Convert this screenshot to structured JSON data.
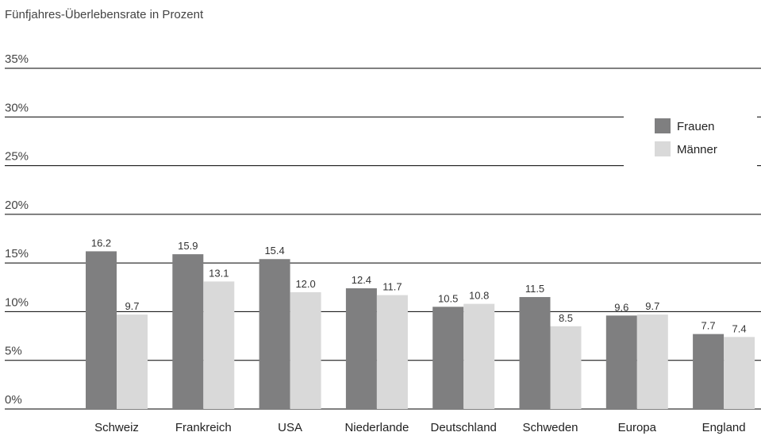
{
  "chart_data": {
    "type": "bar",
    "title": "Fünfjahres-Überlebensrate in Prozent",
    "categories": [
      "Schweiz",
      "Frankreich",
      "USA",
      "Niederlande",
      "Deutschland",
      "Schweden",
      "Europa",
      "England"
    ],
    "series": [
      {
        "name": "Frauen",
        "values": [
          16.2,
          15.9,
          15.4,
          12.4,
          10.5,
          11.5,
          9.6,
          7.7
        ],
        "value_labels": [
          "16.2",
          "15.9",
          "15.4",
          "12.4",
          "10.5",
          "11.5",
          "9.6",
          "7.7"
        ],
        "color": "#7f7f80"
      },
      {
        "name": "Männer",
        "values": [
          9.7,
          13.1,
          12.0,
          11.7,
          10.8,
          8.5,
          9.7,
          7.4
        ],
        "value_labels": [
          "9.7",
          "13.1",
          "12.0",
          "11.7",
          "10.8",
          "8.5",
          "9.7",
          "7.4"
        ],
        "color": "#d9d9d9"
      }
    ],
    "yticks": [
      "35%",
      "30%",
      "25%",
      "20%",
      "15%",
      "10%",
      "5%",
      "0%"
    ],
    "ylim": [
      0,
      35
    ],
    "xlabel": "",
    "ylabel": "",
    "grid": true,
    "legend_position": "right"
  }
}
